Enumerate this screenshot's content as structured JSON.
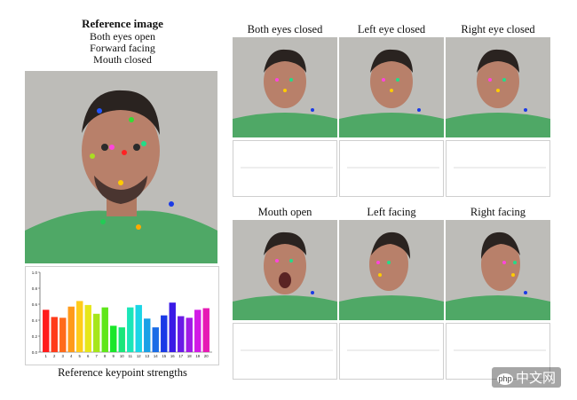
{
  "reference": {
    "title": "Reference image",
    "lines": [
      "Both eyes open",
      "Forward facing",
      "Mouth closed"
    ],
    "caption": "Reference keypoint strengths"
  },
  "panels": [
    {
      "label": "Both eyes closed"
    },
    {
      "label": "Left eye closed"
    },
    {
      "label": "Right eye closed"
    },
    {
      "label": "Mouth open"
    },
    {
      "label": "Left facing"
    },
    {
      "label": "Right facing"
    }
  ],
  "watermark": {
    "logo": "php",
    "text": "中文网"
  },
  "chart_data": {
    "type": "bar",
    "title": "",
    "xlabel": "Reference keypoint strengths",
    "ylabel": "",
    "categories": [
      "1",
      "2",
      "3",
      "4",
      "5",
      "6",
      "7",
      "8",
      "9",
      "10",
      "11",
      "12",
      "13",
      "14",
      "15",
      "16",
      "17",
      "18",
      "19",
      "20"
    ],
    "values": [
      0.53,
      0.44,
      0.43,
      0.57,
      0.64,
      0.59,
      0.48,
      0.56,
      0.33,
      0.31,
      0.56,
      0.59,
      0.42,
      0.31,
      0.46,
      0.62,
      0.45,
      0.43,
      0.53,
      0.55
    ],
    "ylim": [
      0,
      1.0
    ],
    "yticks": [
      "0.0",
      "0.2",
      "0.4",
      "0.6",
      "0.8",
      "1.0"
    ],
    "colors": [
      "#ff1a1a",
      "#ff3b1a",
      "#ff6a1a",
      "#ff9a1a",
      "#ffcc1a",
      "#e6e61a",
      "#a6e61a",
      "#5fe61a",
      "#1ae62a",
      "#1ae67a",
      "#1ae6b8",
      "#1ad5e6",
      "#1aa0e6",
      "#1a6ce6",
      "#1a3ae6",
      "#3a1ae6",
      "#6a1ae6",
      "#a01ae6",
      "#d21ae6",
      "#e61ab4"
    ]
  }
}
